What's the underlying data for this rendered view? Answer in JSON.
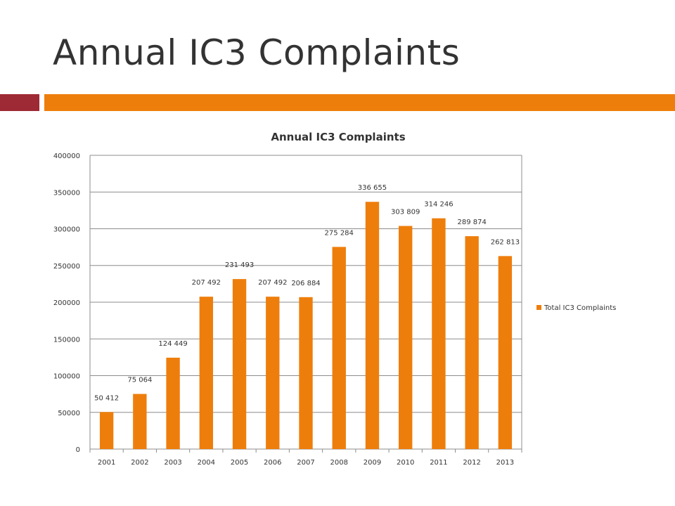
{
  "slide": {
    "title": "Annual IC3 Complaints"
  },
  "colors": {
    "accent_left": "#9E2A35",
    "accent_right": "#EE7E0B",
    "bar": "#EE7E0B",
    "grid": "#8C8C8C",
    "text": "#333333"
  },
  "chart_data": {
    "type": "bar",
    "title": "Annual IC3 Complaints",
    "xlabel": "",
    "ylabel": "",
    "categories": [
      "2001",
      "2002",
      "2003",
      "2004",
      "2005",
      "2006",
      "2007",
      "2008",
      "2009",
      "2010",
      "2011",
      "2012",
      "2013"
    ],
    "series": [
      {
        "name": "Total IC3 Complaints",
        "values": [
          50412,
          75064,
          124449,
          207492,
          231493,
          207492,
          206884,
          275284,
          336655,
          303809,
          314246,
          289874,
          262813
        ],
        "labels": [
          "50 412",
          "75 064",
          "124 449",
          "207 492",
          "231 493",
          "207 492",
          "206 884",
          "275 284",
          "336 655",
          "303 809",
          "314 246",
          "289 874",
          "262 813"
        ]
      }
    ],
    "ylim": [
      0,
      400000
    ],
    "yticks": [
      0,
      50000,
      100000,
      150000,
      200000,
      250000,
      300000,
      350000,
      400000
    ],
    "ytick_labels": [
      "0",
      "50000",
      "100000",
      "150000",
      "200000",
      "250000",
      "300000",
      "350000",
      "400000"
    ],
    "grid": true,
    "legend": "right"
  }
}
